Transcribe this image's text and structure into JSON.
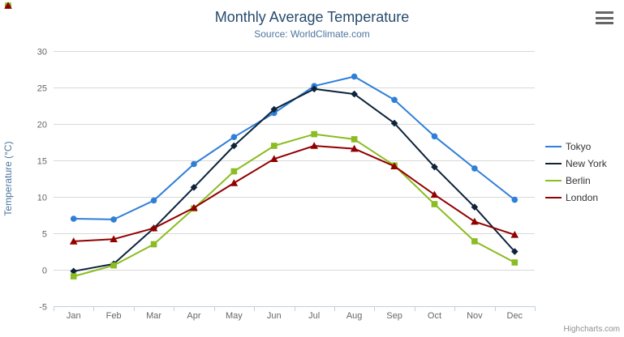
{
  "chart_data": {
    "type": "line",
    "title": "Monthly Average Temperature",
    "subtitle": "Source: WorldClimate.com",
    "categories": [
      "Jan",
      "Feb",
      "Mar",
      "Apr",
      "May",
      "Jun",
      "Jul",
      "Aug",
      "Sep",
      "Oct",
      "Nov",
      "Dec"
    ],
    "series": [
      {
        "name": "Tokyo",
        "color": "#2f7ed8",
        "marker": "circle",
        "values": [
          7.0,
          6.9,
          9.5,
          14.5,
          18.2,
          21.5,
          25.2,
          26.5,
          23.3,
          18.3,
          13.9,
          9.6
        ]
      },
      {
        "name": "New York",
        "color": "#0d233a",
        "marker": "diamond",
        "values": [
          -0.2,
          0.8,
          5.7,
          11.3,
          17.0,
          22.0,
          24.8,
          24.1,
          20.1,
          14.1,
          8.6,
          2.5
        ]
      },
      {
        "name": "Berlin",
        "color": "#8bbc21",
        "marker": "square",
        "values": [
          -0.9,
          0.6,
          3.5,
          8.4,
          13.5,
          17.0,
          18.6,
          17.9,
          14.3,
          9.0,
          3.9,
          1.0
        ]
      },
      {
        "name": "London",
        "color": "#910000",
        "marker": "triangle",
        "values": [
          3.9,
          4.2,
          5.7,
          8.5,
          11.9,
          15.2,
          17.0,
          16.6,
          14.2,
          10.3,
          6.6,
          4.8
        ]
      }
    ],
    "xlabel": "",
    "ylabel": "Temperature (°C)",
    "ylim": [
      -5,
      30
    ],
    "ytick_step": 5,
    "grid": true,
    "legend_position": "right",
    "credits": "Highcharts.com",
    "colors": {
      "title": "#274b6d",
      "subtitle": "#4d759e",
      "axis_title": "#4d759e",
      "tick_label": "#666666",
      "gridline": "#d8d8d8",
      "axis_line": "#c0d0e0",
      "legend_text": "#333333",
      "credits_text": "#909090",
      "menu_icon": "#666666"
    }
  }
}
